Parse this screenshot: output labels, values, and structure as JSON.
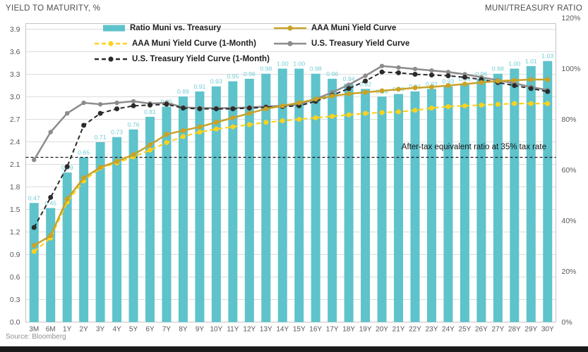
{
  "header": {
    "left_title": "YIELD TO MATURITY, %",
    "right_title": "MUNI/TREASURY RATIO"
  },
  "source": "Source: Bloomberg",
  "colors": {
    "bar": "#5EC3CB",
    "bar_label": "#74CDD5",
    "muni": "#C9A227",
    "muni_1m": "#FFD21E",
    "treasury": "#8C8C8C",
    "treasury_1m": "#2B2B2B",
    "grid": "#DCDCDC",
    "frame": "#C4C4C4",
    "reference_line": "#1A1A1A",
    "tick_text": "#595959"
  },
  "legend": [
    {
      "label": "Ratio Muni vs. Treasury",
      "swatch": "bar",
      "color": "#5EC3CB"
    },
    {
      "label": "AAA Muni Yield Curve",
      "swatch": "line",
      "color": "#C9A227"
    },
    {
      "label": "AAA Muni Yield Curve (1-Month)",
      "swatch": "line-dashed",
      "color": "#FFD21E"
    },
    {
      "label": "U.S. Treasury Yield Curve",
      "swatch": "line",
      "color": "#8C8C8C"
    },
    {
      "label": "U.S. Treasury Yield Curve (1-Month)",
      "swatch": "line-dashed",
      "color": "#2B2B2B"
    }
  ],
  "chart_data": {
    "type": "bar+line combo, dual axis",
    "categories": [
      "3M",
      "6M",
      "1Y",
      "2Y",
      "3Y",
      "4Y",
      "5Y",
      "6Y",
      "7Y",
      "8Y",
      "9Y",
      "10Y",
      "11Y",
      "12Y",
      "13Y",
      "14Y",
      "15Y",
      "16Y",
      "17Y",
      "18Y",
      "19Y",
      "20Y",
      "21Y",
      "22Y",
      "23Y",
      "24Y",
      "25Y",
      "26Y",
      "27Y",
      "28Y",
      "29Y",
      "30Y"
    ],
    "left_axis": {
      "title": "YIELD TO MATURITY, %",
      "min": 0.0,
      "max": 3.9,
      "step": 0.3,
      "ticks": [
        "0.0",
        "0.3",
        "0.6",
        "0.9",
        "1.2",
        "1.5",
        "1.8",
        "2.1",
        "2.4",
        "2.7",
        "3.0",
        "3.3",
        "3.6",
        "3.9"
      ]
    },
    "right_axis": {
      "title": "MUNI/TREASURY RATIO",
      "min": 0,
      "max": 120,
      "step": 20,
      "unit": "%",
      "ticks": [
        "0%",
        "20%",
        "40%",
        "60%",
        "80%",
        "100%",
        "120%"
      ]
    },
    "grid": "horizontal only",
    "legend_position": "top-center, inside plot",
    "series": [
      {
        "name": "Ratio Muni vs. Treasury",
        "type": "bar",
        "axis": "right",
        "color": "#5EC3CB",
        "data_labels": true,
        "values": [
          0.47,
          0.45,
          0.59,
          0.65,
          0.71,
          0.73,
          0.76,
          0.81,
          0.85,
          0.89,
          0.91,
          0.93,
          0.95,
          0.96,
          0.98,
          1.0,
          1.0,
          0.98,
          0.96,
          0.94,
          0.92,
          0.89,
          0.9,
          0.91,
          0.92,
          0.93,
          0.94,
          0.96,
          0.98,
          1.0,
          1.01,
          1.03
        ]
      },
      {
        "name": "U.S. Treasury Yield Curve",
        "type": "line",
        "axis": "left",
        "color": "#8C8C8C",
        "style": "solid",
        "values": [
          2.16,
          2.53,
          2.78,
          2.92,
          2.9,
          2.92,
          2.94,
          2.91,
          2.92,
          2.86,
          2.85,
          2.85,
          2.85,
          2.86,
          2.87,
          2.88,
          2.9,
          2.97,
          3.06,
          3.16,
          3.28,
          3.41,
          3.39,
          3.37,
          3.35,
          3.33,
          3.3,
          3.26,
          3.22,
          3.18,
          3.13,
          3.09
        ]
      },
      {
        "name": "U.S. Treasury Yield Curve (1-Month)",
        "type": "line",
        "axis": "left",
        "color": "#2B2B2B",
        "style": "dashed",
        "values": [
          1.26,
          1.66,
          2.07,
          2.62,
          2.78,
          2.84,
          2.88,
          2.89,
          2.9,
          2.85,
          2.84,
          2.84,
          2.84,
          2.85,
          2.86,
          2.87,
          2.88,
          2.94,
          3.02,
          3.11,
          3.21,
          3.33,
          3.32,
          3.3,
          3.29,
          3.28,
          3.26,
          3.23,
          3.19,
          3.15,
          3.11,
          3.07
        ]
      },
      {
        "name": "AAA Muni Yield Curve (1-Month)",
        "type": "line",
        "axis": "left",
        "color": "#FFD21E",
        "style": "dashed",
        "values": [
          0.94,
          1.12,
          1.6,
          1.88,
          2.05,
          2.12,
          2.2,
          2.29,
          2.39,
          2.47,
          2.53,
          2.57,
          2.6,
          2.63,
          2.66,
          2.68,
          2.7,
          2.72,
          2.74,
          2.76,
          2.78,
          2.79,
          2.8,
          2.82,
          2.85,
          2.87,
          2.88,
          2.89,
          2.9,
          2.91,
          2.91,
          2.91
        ]
      },
      {
        "name": "AAA Muni Yield Curve",
        "type": "line",
        "axis": "left",
        "color": "#C9A227",
        "style": "solid",
        "values": [
          1.02,
          1.15,
          1.64,
          1.92,
          2.06,
          2.14,
          2.23,
          2.36,
          2.5,
          2.55,
          2.6,
          2.66,
          2.72,
          2.78,
          2.84,
          2.88,
          2.92,
          2.97,
          3.01,
          3.04,
          3.06,
          3.08,
          3.1,
          3.12,
          3.13,
          3.15,
          3.17,
          3.19,
          3.21,
          3.22,
          3.23,
          3.23
        ]
      }
    ],
    "reference_line": {
      "label": "After-tax equivalent ratio at 35% tax rate",
      "axis": "right",
      "value": 65,
      "style": "dashed",
      "color": "#1A1A1A"
    }
  }
}
